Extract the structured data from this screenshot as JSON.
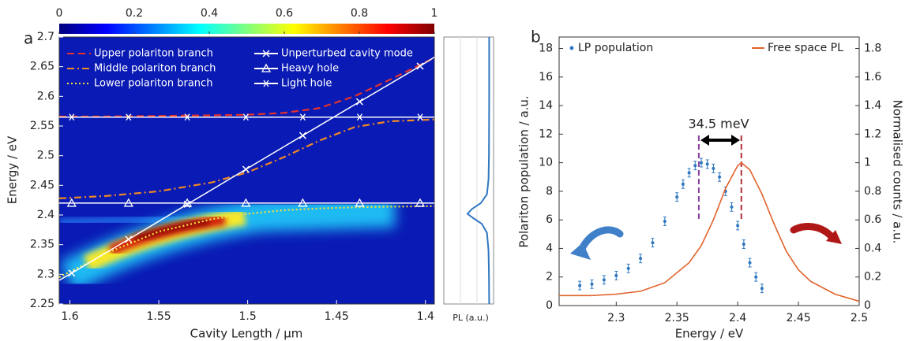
{
  "chart_data": [
    {
      "type": "heatmap",
      "panel_label": "a",
      "xlabel": "Cavity Length / μm",
      "ylabel": "Energy / eV",
      "xlim": [
        1.606,
        1.395
      ],
      "xticks": [
        1.6,
        1.55,
        1.5,
        1.45,
        1.4
      ],
      "ylim": [
        2.25,
        2.7
      ],
      "yticks": [
        2.25,
        2.3,
        2.35,
        2.4,
        2.45,
        2.5,
        2.55,
        2.6,
        2.65,
        2.7
      ],
      "colorbar": {
        "lim": [
          0,
          1
        ],
        "ticks": [
          0,
          0.2,
          0.4,
          0.6,
          0.8,
          1
        ]
      },
      "series": [
        {
          "name": "Upper polariton branch",
          "color": "#e8322a",
          "style": "dashed",
          "x": [
            1.606,
            1.58,
            1.55,
            1.52,
            1.5,
            1.48,
            1.46,
            1.44,
            1.42,
            1.395
          ],
          "values": [
            2.566,
            2.566,
            2.567,
            2.568,
            2.569,
            2.572,
            2.58,
            2.6,
            2.628,
            2.665
          ]
        },
        {
          "name": "Middle polariton branch",
          "color": "#f08a24",
          "style": "dashdot",
          "x": [
            1.606,
            1.58,
            1.55,
            1.52,
            1.5,
            1.48,
            1.46,
            1.44,
            1.42,
            1.395
          ],
          "values": [
            2.428,
            2.432,
            2.44,
            2.455,
            2.472,
            2.497,
            2.525,
            2.548,
            2.558,
            2.561
          ]
        },
        {
          "name": "Lower polariton branch",
          "color": "#f4e43a",
          "style": "dotted",
          "x": [
            1.606,
            1.58,
            1.55,
            1.52,
            1.5,
            1.48,
            1.46,
            1.44,
            1.42,
            1.395
          ],
          "values": [
            2.295,
            2.335,
            2.372,
            2.393,
            2.402,
            2.408,
            2.411,
            2.413,
            2.414,
            2.415
          ]
        },
        {
          "name": "Unperturbed cavity mode",
          "color": "#ffffff",
          "style": "solid",
          "marker": "x",
          "x": [
            1.606,
            1.599,
            1.567,
            1.534,
            1.501,
            1.469,
            1.437,
            1.403,
            1.395
          ],
          "values": [
            2.29,
            2.302,
            2.359,
            2.418,
            2.477,
            2.534,
            2.591,
            2.651,
            2.666
          ]
        },
        {
          "name": "Heavy hole",
          "color": "#ffffff",
          "style": "solid",
          "marker": "triangle",
          "x": [
            1.606,
            1.599,
            1.567,
            1.534,
            1.501,
            1.469,
            1.437,
            1.403,
            1.395
          ],
          "values": [
            2.42,
            2.42,
            2.42,
            2.42,
            2.42,
            2.42,
            2.42,
            2.42,
            2.42
          ]
        },
        {
          "name": "Light hole",
          "color": "#ffffff",
          "style": "solid",
          "marker": "asterisk",
          "x": [
            1.606,
            1.599,
            1.567,
            1.534,
            1.501,
            1.469,
            1.437,
            1.403,
            1.395
          ],
          "values": [
            2.565,
            2.565,
            2.565,
            2.565,
            2.565,
            2.565,
            2.565,
            2.565,
            2.565
          ]
        }
      ]
    },
    {
      "type": "line",
      "xlabel": "PL (a.u.)",
      "color": "#2f77c0",
      "x": [
        2.25,
        2.3,
        2.34,
        2.37,
        2.385,
        2.395,
        2.402,
        2.41,
        2.42,
        2.435,
        2.46,
        2.5,
        2.6,
        2.7
      ],
      "values": [
        0.02,
        0.03,
        0.05,
        0.12,
        0.35,
        0.75,
        1,
        0.8,
        0.4,
        0.12,
        0.05,
        0.03,
        0.02,
        0.02
      ]
    },
    {
      "type": "scatter",
      "panel_label": "b",
      "xlabel": "Energy / eV",
      "ylabel": "Polariton population / a.u.",
      "y2label": "Normalised counts / a.u.",
      "xlim": [
        2.253,
        2.5
      ],
      "xticks": [
        2.3,
        2.35,
        2.4,
        2.45,
        2.5
      ],
      "ylim": [
        0,
        18.8
      ],
      "yticks": [
        0,
        2,
        4,
        6,
        8,
        10,
        12,
        14,
        16,
        18
      ],
      "y2lim": [
        0,
        1.88
      ],
      "y2ticks": [
        0,
        0.2,
        0.4,
        0.6,
        0.8,
        1,
        1.2,
        1.4,
        1.6,
        1.8
      ],
      "annotation": "34.5 meV",
      "vlines": [
        {
          "x": 2.368,
          "color": "#8b3fa0"
        },
        {
          "x": 2.403,
          "color": "#b0303a"
        }
      ],
      "series": [
        {
          "name": "LP population",
          "color": "#2f77c0",
          "x": [
            2.27,
            2.28,
            2.29,
            2.3,
            2.31,
            2.32,
            2.33,
            2.34,
            2.35,
            2.355,
            2.36,
            2.365,
            2.37,
            2.375,
            2.38,
            2.385,
            2.39,
            2.395,
            2.4,
            2.405,
            2.41,
            2.415,
            2.42
          ],
          "values": [
            1.4,
            1.5,
            1.8,
            2.1,
            2.6,
            3.3,
            4.4,
            5.9,
            7.6,
            8.5,
            9.3,
            9.8,
            10,
            9.9,
            9.6,
            9,
            8,
            6.9,
            5.6,
            4.3,
            3,
            2,
            1.2
          ],
          "errors": [
            0.3,
            0.3,
            0.3,
            0.3,
            0.3,
            0.3,
            0.3,
            0.3,
            0.3,
            0.3,
            0.3,
            0.3,
            0.3,
            0.3,
            0.3,
            0.3,
            0.3,
            0.3,
            0.3,
            0.3,
            0.3,
            0.3,
            0.3
          ]
        },
        {
          "name": "Free space PL",
          "color": "#e0622a",
          "axis": "y2",
          "x": [
            2.253,
            2.28,
            2.3,
            2.32,
            2.34,
            2.36,
            2.37,
            2.38,
            2.39,
            2.4,
            2.403,
            2.41,
            2.42,
            2.43,
            2.44,
            2.45,
            2.46,
            2.48,
            2.5
          ],
          "values": [
            0.07,
            0.07,
            0.08,
            0.1,
            0.16,
            0.3,
            0.42,
            0.6,
            0.82,
            0.98,
            1,
            0.95,
            0.78,
            0.57,
            0.38,
            0.25,
            0.17,
            0.08,
            0.03
          ]
        }
      ]
    }
  ]
}
